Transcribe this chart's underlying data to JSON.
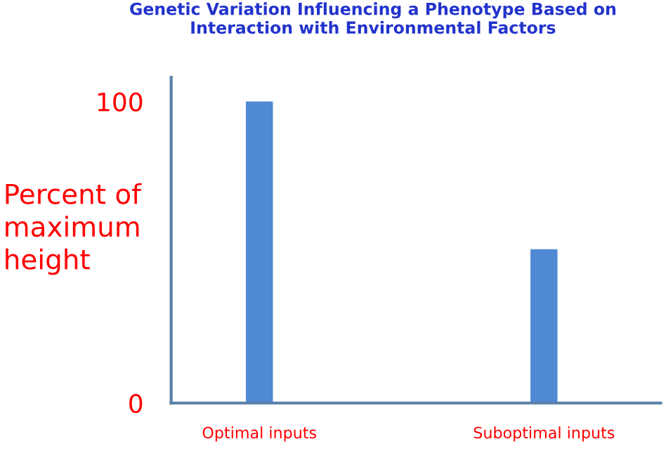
{
  "chart_data": {
    "type": "bar",
    "title": "Genetic Variation Influencing a Phenotype Based on\nInteraction with Environmental Factors",
    "ylabel": "Percent of\nmaximum\nheight",
    "categories": [
      "Optimal inputs",
      "Suboptimal inputs"
    ],
    "values": [
      100,
      51
    ],
    "color": "#5089d4",
    "ylim": [
      0,
      108
    ],
    "yticks": [
      0,
      100
    ],
    "grid": false,
    "legend": false
  }
}
